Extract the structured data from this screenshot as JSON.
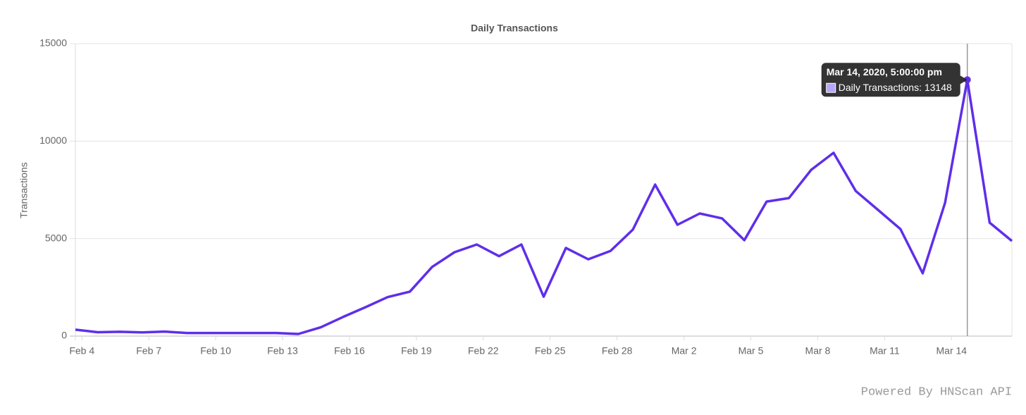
{
  "chart_data": {
    "type": "line",
    "title": "Daily Transactions",
    "y_label": "Transactions",
    "x": [
      "2020-02-03T17:00",
      "2020-02-04T17:00",
      "2020-02-05T17:00",
      "2020-02-06T17:00",
      "2020-02-07T17:00",
      "2020-02-08T17:00",
      "2020-02-09T17:00",
      "2020-02-10T17:00",
      "2020-02-11T17:00",
      "2020-02-12T17:00",
      "2020-02-13T17:00",
      "2020-02-14T17:00",
      "2020-02-15T17:00",
      "2020-02-16T17:00",
      "2020-02-17T17:00",
      "2020-02-18T17:00",
      "2020-02-19T17:00",
      "2020-02-20T17:00",
      "2020-02-21T17:00",
      "2020-02-22T17:00",
      "2020-02-23T17:00",
      "2020-02-24T17:00",
      "2020-02-25T17:00",
      "2020-02-26T17:00",
      "2020-02-27T17:00",
      "2020-02-28T17:00",
      "2020-02-29T17:00",
      "2020-03-01T17:00",
      "2020-03-02T17:00",
      "2020-03-03T17:00",
      "2020-03-04T17:00",
      "2020-03-05T17:00",
      "2020-03-06T17:00",
      "2020-03-07T17:00",
      "2020-03-08T17:00",
      "2020-03-09T17:00",
      "2020-03-10T17:00",
      "2020-03-11T17:00",
      "2020-03-12T17:00",
      "2020-03-13T17:00",
      "2020-03-14T17:00",
      "2020-03-15T17:00",
      "2020-03-16T17:00"
    ],
    "series": [
      {
        "name": "Daily Transactions",
        "color": "#5f2eea",
        "values": [
          330,
          200,
          220,
          190,
          230,
          160,
          160,
          160,
          160,
          160,
          110,
          450,
          980,
          1480,
          2000,
          2280,
          3550,
          4300,
          4700,
          4100,
          4700,
          2020,
          4520,
          3940,
          4370,
          5460,
          7770,
          5710,
          6290,
          6040,
          4920,
          6900,
          7080,
          8530,
          9400,
          7440,
          6470,
          5490,
          3220,
          6830,
          13148,
          5820,
          4880
        ]
      }
    ],
    "xlim": [
      "2020-02-03T17:00",
      "2020-03-16T17:00"
    ],
    "xticks": [
      {
        "value": "2020-02-04T00:00",
        "label": "Feb 4"
      },
      {
        "value": "2020-02-07T00:00",
        "label": "Feb 7"
      },
      {
        "value": "2020-02-10T00:00",
        "label": "Feb 10"
      },
      {
        "value": "2020-02-13T00:00",
        "label": "Feb 13"
      },
      {
        "value": "2020-02-16T00:00",
        "label": "Feb 16"
      },
      {
        "value": "2020-02-19T00:00",
        "label": "Feb 19"
      },
      {
        "value": "2020-02-22T00:00",
        "label": "Feb 22"
      },
      {
        "value": "2020-02-25T00:00",
        "label": "Feb 25"
      },
      {
        "value": "2020-02-28T00:00",
        "label": "Feb 28"
      },
      {
        "value": "2020-03-02T00:00",
        "label": "Mar 2"
      },
      {
        "value": "2020-03-05T00:00",
        "label": "Mar 5"
      },
      {
        "value": "2020-03-08T00:00",
        "label": "Mar 8"
      },
      {
        "value": "2020-03-11T00:00",
        "label": "Mar 11"
      },
      {
        "value": "2020-03-14T00:00",
        "label": "Mar 14"
      }
    ],
    "ylim": [
      0,
      15000
    ],
    "yticks": [
      0,
      5000,
      10000,
      15000
    ],
    "grid": true,
    "tooltip": {
      "index": 40,
      "title": "Mar 14, 2020, 5:00:00 pm",
      "label": "Daily Transactions: 13148"
    }
  },
  "footer": "Powered By HNScan API"
}
